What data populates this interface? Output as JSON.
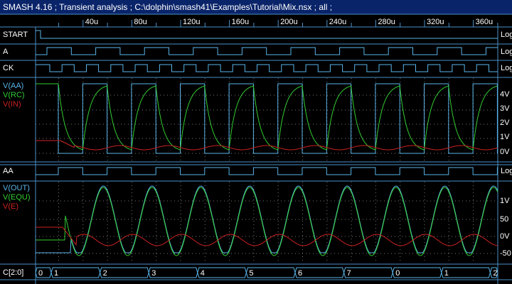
{
  "window": {
    "title": "SMASH 4.16 ; Transient analysis ; C:\\dolphin\\smash41\\Examples\\Tutorial\\Mix.nsx ; all ;"
  },
  "time_axis": {
    "labels": [
      "40u",
      "80u",
      "120u",
      "160u",
      "200u",
      "240u",
      "280u",
      "320u",
      "360u"
    ]
  },
  "panels": {
    "start": {
      "label": "START",
      "unit": "Log"
    },
    "a": {
      "label": "A",
      "unit": "Log"
    },
    "ck": {
      "label": "CK",
      "unit": "Log"
    },
    "analog1": {
      "labels": [
        "V(AA)",
        "V(RC)",
        "V(IN)"
      ],
      "ticks": [
        "4V",
        "3V",
        "2V",
        "1V",
        "0V"
      ],
      "colors": {
        "aa": "#5ab4e8",
        "rc": "#33cc33",
        "in": "#cc2222"
      }
    },
    "aa": {
      "label": "AA",
      "unit": "Log"
    },
    "analog2": {
      "labels": [
        "V(OUT)",
        "V(EQU)",
        "V(E)"
      ],
      "ticks": [
        "1V",
        "50",
        "0V",
        "-50"
      ],
      "colors": {
        "out": "#5ab4e8",
        "equ": "#33cc33",
        "e": "#cc2222"
      }
    },
    "bus": {
      "label": "C[2:0]",
      "values": [
        "0",
        "1",
        "2",
        "3",
        "4",
        "5",
        "6",
        "7",
        "0",
        "1",
        "2"
      ]
    }
  }
}
